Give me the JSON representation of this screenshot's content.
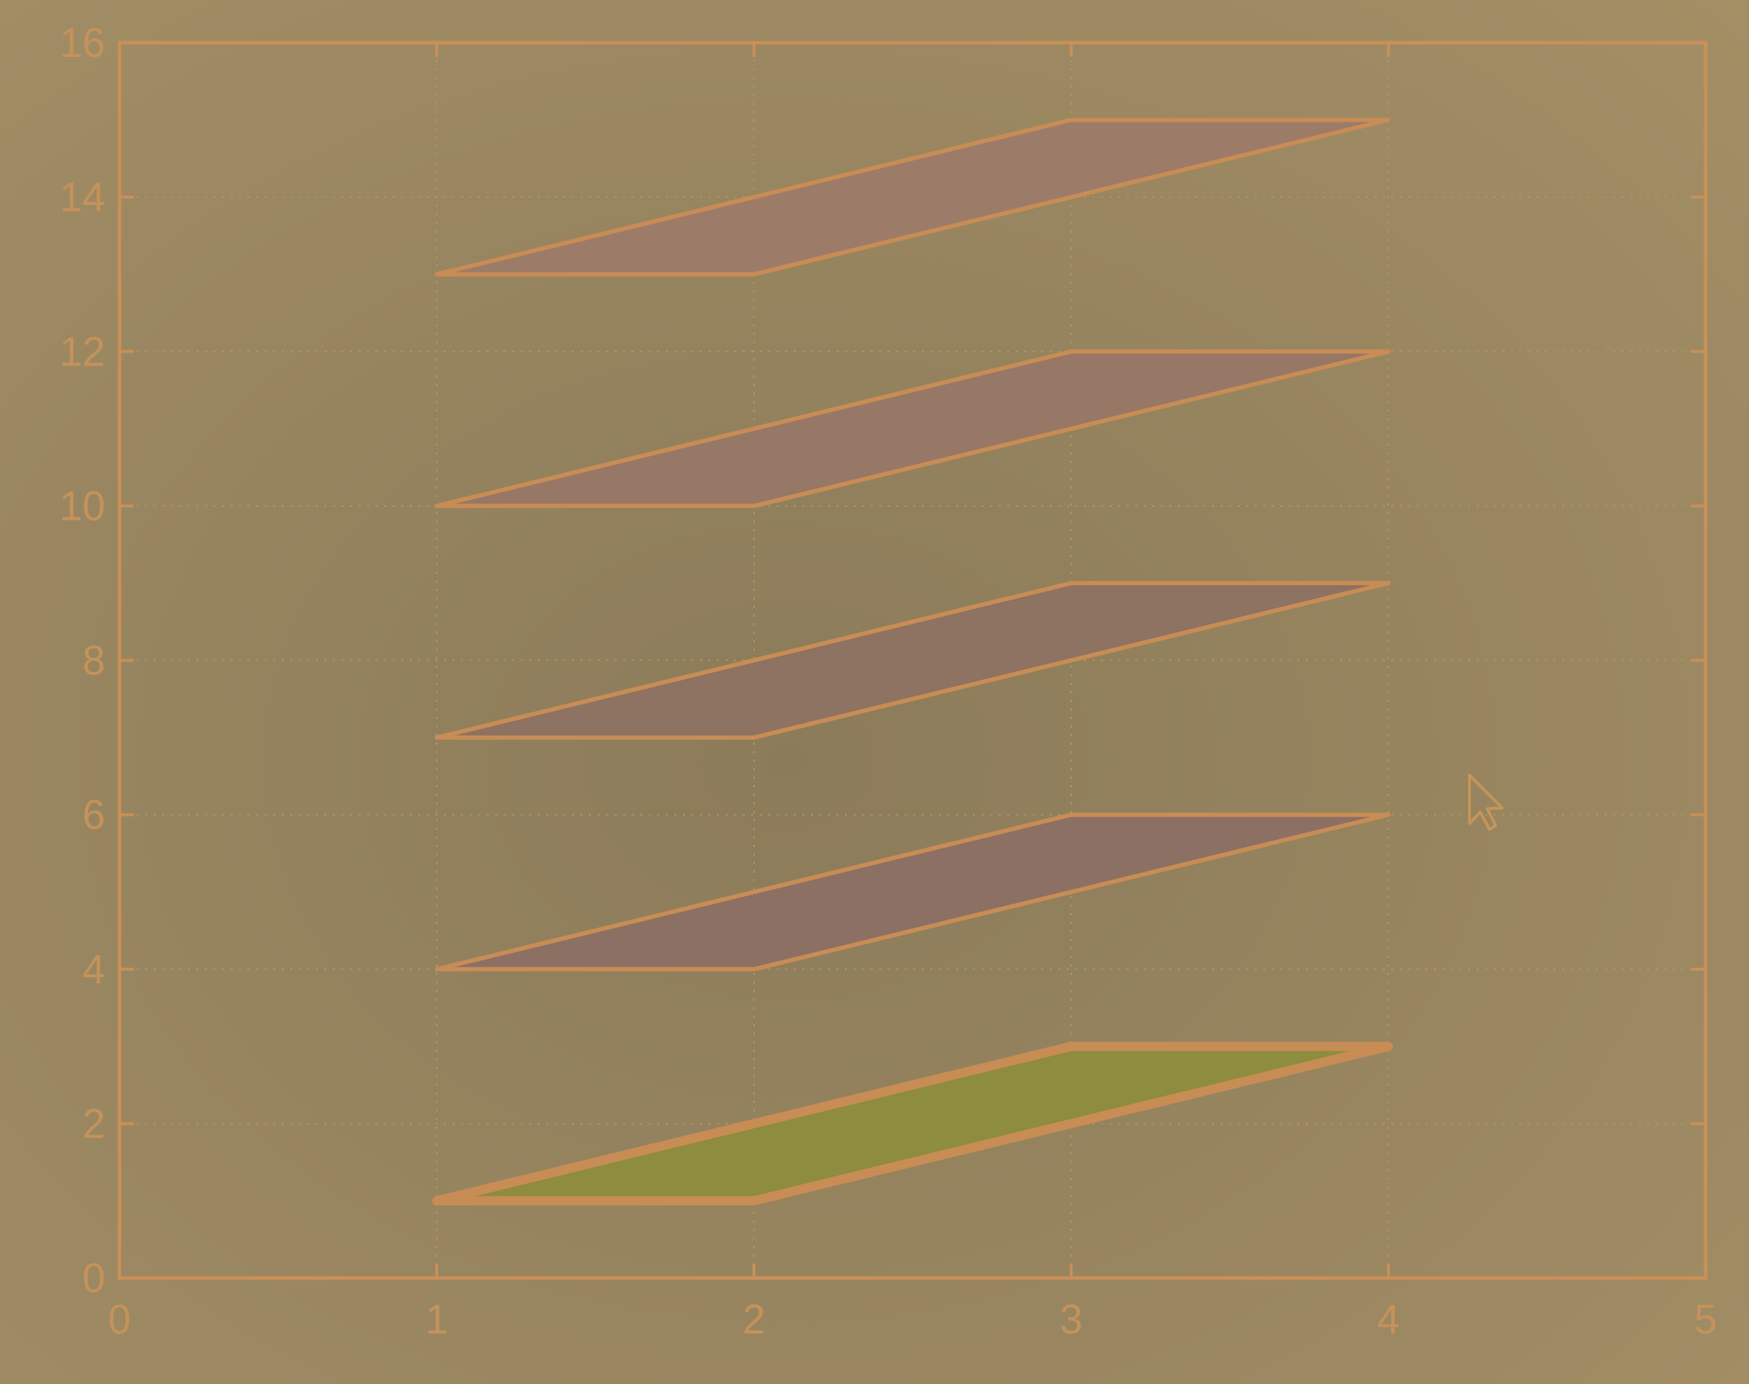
{
  "chart_data": {
    "type": "area",
    "title": "",
    "xlabel": "",
    "ylabel": "",
    "xlim": [
      0,
      5
    ],
    "ylim": [
      0,
      16
    ],
    "x_ticks": [
      "0",
      "1",
      "2",
      "3",
      "4",
      "5"
    ],
    "y_ticks": [
      "0",
      "2",
      "4",
      "6",
      "8",
      "10",
      "12",
      "14",
      "16"
    ],
    "grid": true,
    "legend": "none",
    "series": [
      {
        "id": "shape-1",
        "x": [
          1,
          2,
          4,
          3,
          1
        ],
        "y": [
          1,
          1,
          3,
          3,
          1
        ],
        "color": "#8e8c3e",
        "highlighted": true
      },
      {
        "id": "shape-2",
        "x": [
          1,
          2,
          4,
          3,
          1
        ],
        "y": [
          4,
          4,
          6,
          6,
          4
        ],
        "color": "#8d7064",
        "highlighted": false
      },
      {
        "id": "shape-3",
        "x": [
          1,
          2,
          4,
          3,
          1
        ],
        "y": [
          7,
          7,
          9,
          9,
          7
        ],
        "color": "#8e7262",
        "highlighted": false
      },
      {
        "id": "shape-4",
        "x": [
          1,
          2,
          4,
          3,
          1
        ],
        "y": [
          10,
          10,
          12,
          12,
          10
        ],
        "color": "#977766",
        "highlighted": false
      },
      {
        "id": "shape-5",
        "x": [
          1,
          2,
          4,
          3,
          1
        ],
        "y": [
          13,
          13,
          15,
          15,
          13
        ],
        "color": "#9c7b69",
        "highlighted": false
      }
    ]
  },
  "colors": {
    "axis": "#c99058",
    "tick_label": "#c4925a",
    "highlight_fill": "#8e8c3e",
    "shape_fill": "#957565"
  },
  "icons": {
    "cursor": "mouse-pointer-icon"
  }
}
